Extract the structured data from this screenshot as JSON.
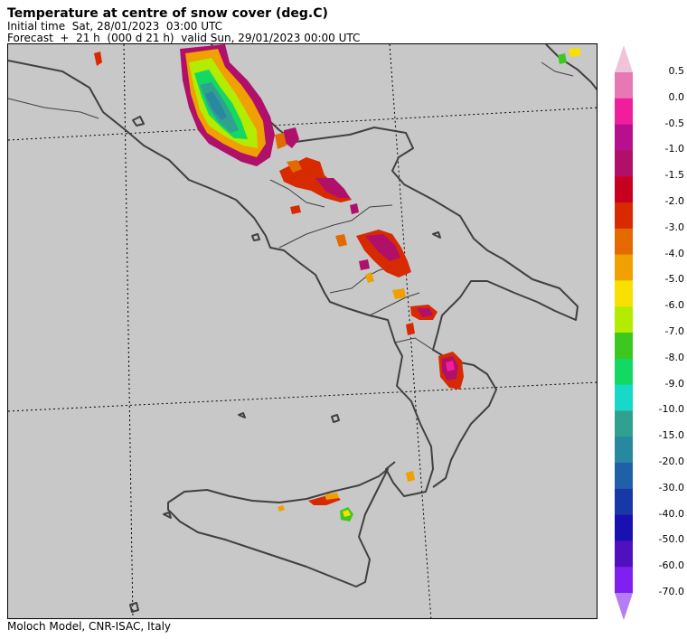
{
  "header": {
    "title": "Temperature at centre of snow cover (deg.C)",
    "initial_time": "Initial time  Sat, 28/01/2023  03:00 UTC",
    "forecast": "Forecast  +  21 h  (000 d 21 h)  valid Sun, 29/01/2023 00:00 UTC"
  },
  "footer": {
    "credit": "Moloch Model, CNR-ISAC, Italy"
  },
  "colorbar": {
    "over_color": "#f0c4d8",
    "under_color": "#b47ef2",
    "bins": [
      {
        "label": "0.5",
        "color": "#e878b4"
      },
      {
        "label": "0.0",
        "color": "#f01e9c"
      },
      {
        "label": "-0.5",
        "color": "#b8108c"
      },
      {
        "label": "-1.0",
        "color": "#b0106a"
      },
      {
        "label": "-1.5",
        "color": "#c80020"
      },
      {
        "label": "-2.0",
        "color": "#d82a00"
      },
      {
        "label": "-3.0",
        "color": "#e46a00"
      },
      {
        "label": "-4.0",
        "color": "#f0a000"
      },
      {
        "label": "-5.0",
        "color": "#f8e000"
      },
      {
        "label": "-6.0",
        "color": "#b4ec00"
      },
      {
        "label": "-7.0",
        "color": "#3cc81e"
      },
      {
        "label": "-8.0",
        "color": "#14d864"
      },
      {
        "label": "-9.0",
        "color": "#18d8c8"
      },
      {
        "label": "-10.0",
        "color": "#30a090"
      },
      {
        "label": "-15.0",
        "color": "#2888a0"
      },
      {
        "label": "-20.0",
        "color": "#2060a8"
      },
      {
        "label": "-30.0",
        "color": "#1838a8"
      },
      {
        "label": "-40.0",
        "color": "#1810b0"
      },
      {
        "label": "-50.0",
        "color": "#5010c0"
      },
      {
        "label": "-60.0",
        "color": "#8020f0"
      },
      {
        "label": "-70.0",
        "color": ""
      }
    ]
  },
  "map": {
    "background": "#c8c8c8",
    "coast_color": "#404040",
    "grid_color": "#000000"
  }
}
